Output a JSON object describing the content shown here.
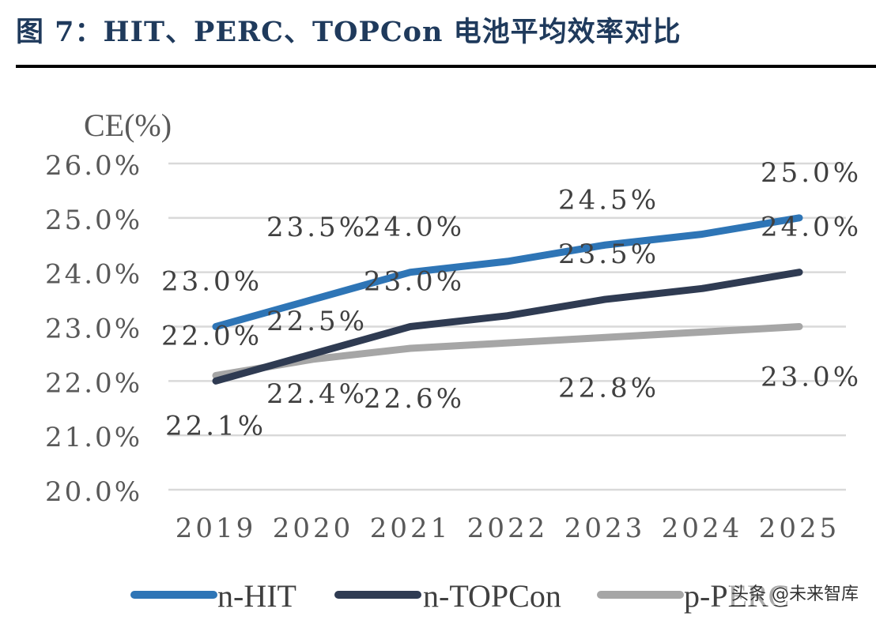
{
  "title": "图 7：HIT、PERC、TOPCon 电池平均效率对比",
  "watermark": "头条 @未来智库",
  "colors": {
    "title": "#1f3a5c",
    "grid": "#d9d9d9",
    "axis_text": "#595959"
  },
  "chart_data": {
    "type": "line",
    "title": "",
    "xlabel": "",
    "ylabel": "CE(%)",
    "x": [
      "2019",
      "2020",
      "2021",
      "2022",
      "2023",
      "2024",
      "2025"
    ],
    "ylim": [
      20.0,
      26.0
    ],
    "yticks": [
      20.0,
      21.0,
      22.0,
      23.0,
      24.0,
      25.0,
      26.0
    ],
    "ytick_labels": [
      "20.0%",
      "21.0%",
      "22.0%",
      "23.0%",
      "24.0%",
      "25.0%",
      "26.0%"
    ],
    "grid": true,
    "legend": "bottom",
    "series": [
      {
        "name": "n-HIT",
        "color": "#2e75b6",
        "values": [
          23.0,
          23.5,
          24.0,
          24.2,
          24.5,
          24.7,
          25.0
        ],
        "data_labels": [
          {
            "i": 0,
            "text": "23.0%"
          },
          {
            "i": 1,
            "text": "23.5%"
          },
          {
            "i": 2,
            "text": "24.0%"
          },
          {
            "i": 4,
            "text": "24.5%"
          },
          {
            "i": 6,
            "text": "25.0%"
          }
        ]
      },
      {
        "name": "n-TOPCon",
        "color": "#2f3b52",
        "values": [
          22.0,
          22.5,
          23.0,
          23.2,
          23.5,
          23.7,
          24.0
        ],
        "data_labels": [
          {
            "i": 0,
            "text": "22.0%"
          },
          {
            "i": 1,
            "text": "22.5%"
          },
          {
            "i": 2,
            "text": "23.0%"
          },
          {
            "i": 4,
            "text": "23.5%"
          },
          {
            "i": 6,
            "text": "24.0%"
          }
        ]
      },
      {
        "name": "p-PERC",
        "color": "#a6a6a6",
        "values": [
          22.1,
          22.4,
          22.6,
          22.7,
          22.8,
          22.9,
          23.0
        ],
        "data_labels": [
          {
            "i": 0,
            "text": "22.1%"
          },
          {
            "i": 1,
            "text": "22.4%"
          },
          {
            "i": 2,
            "text": "22.6%"
          },
          {
            "i": 4,
            "text": "22.8%"
          },
          {
            "i": 6,
            "text": "23.0%"
          }
        ]
      }
    ]
  }
}
